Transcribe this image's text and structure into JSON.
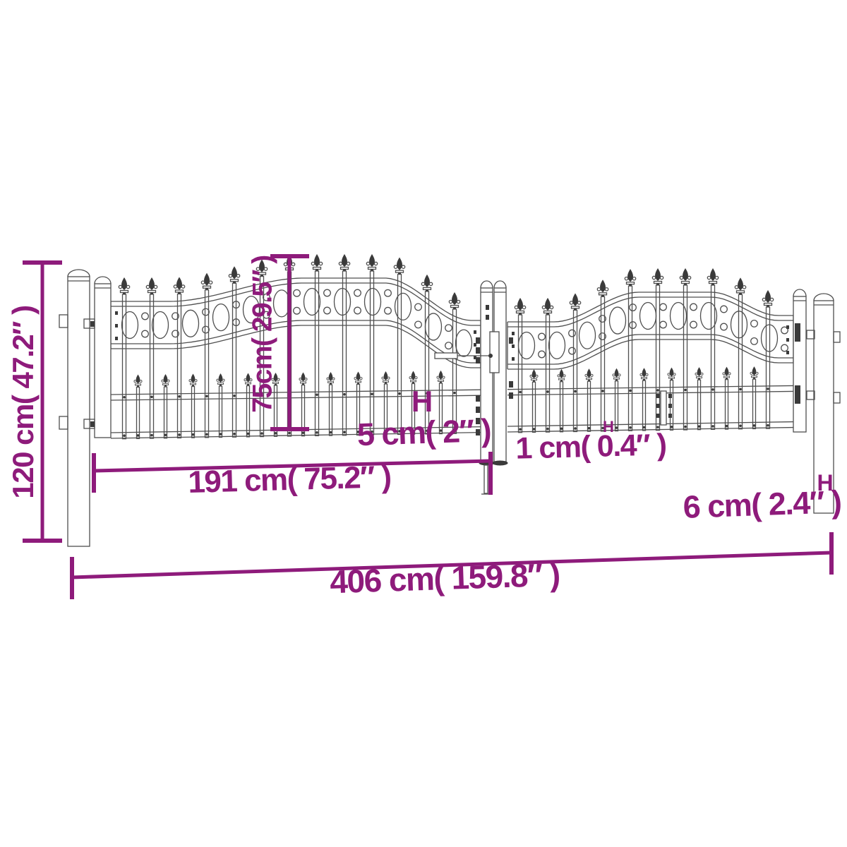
{
  "colors": {
    "accent": "#8e1b7b",
    "line": "#4f4f4f",
    "dark": "#3a3a3a",
    "background": "#ffffff"
  },
  "diagram": {
    "labels": {
      "total_height": "120 cm( 47.2″ )",
      "fence_height": "75cm( 29.5″ )",
      "bar_spacing": "5 cm( 2″ )",
      "leaf_gap": "1 cm( 0.4″ )",
      "leaf_width": "191 cm( 75.2″ )",
      "post_width": "6 cm( 2.4″ )",
      "total_width": "406 cm( 159.8″ )",
      "marker": "H"
    }
  }
}
